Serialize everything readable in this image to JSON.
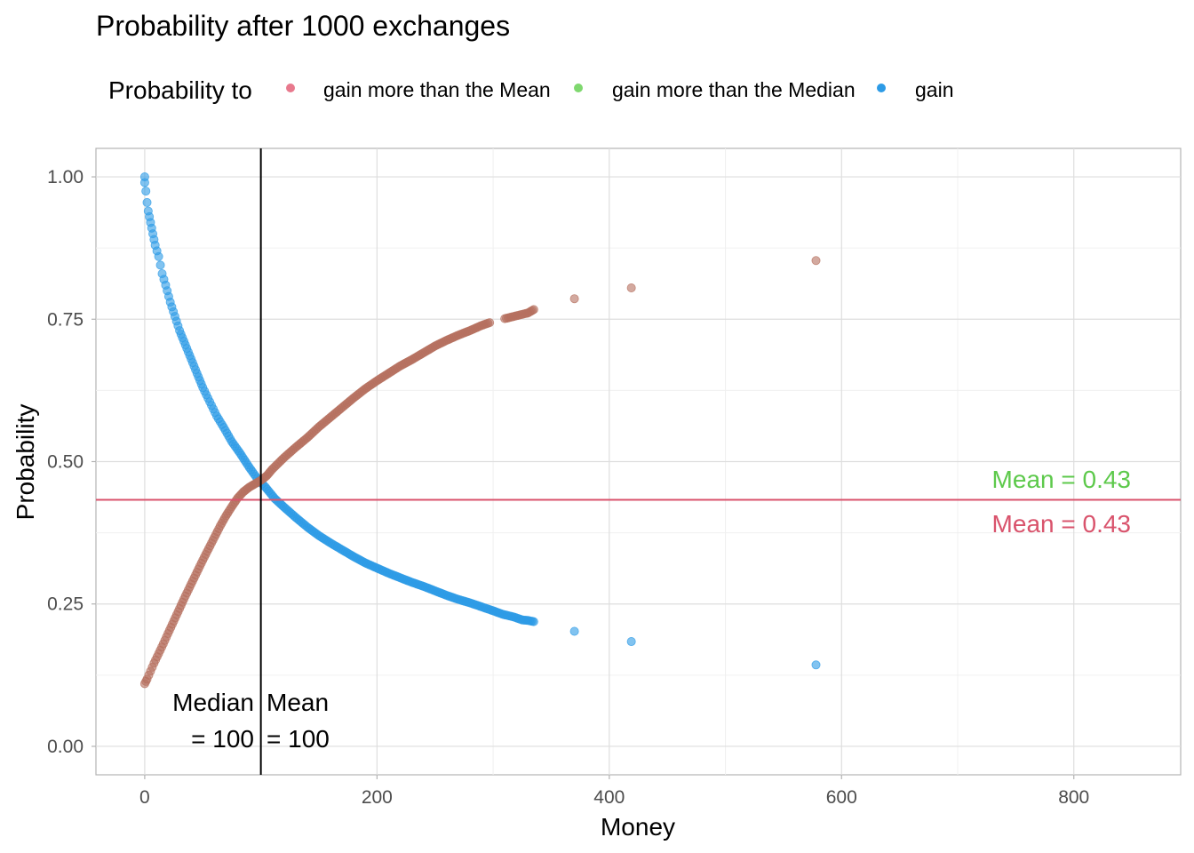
{
  "chart_data": {
    "type": "scatter",
    "title": "Probability after 1000 exchanges",
    "xlabel": "Money",
    "ylabel": "Probability",
    "xlim": [
      -42,
      892
    ],
    "ylim": [
      -0.05,
      1.05
    ],
    "x_ticks": [
      0,
      200,
      400,
      600,
      800
    ],
    "y_ticks": [
      0.0,
      0.25,
      0.5,
      0.75,
      1.0
    ],
    "x_tick_labels": [
      "0",
      "200",
      "400",
      "600",
      "800"
    ],
    "y_tick_labels": [
      "0.00",
      "0.25",
      "0.50",
      "0.75",
      "1.00"
    ],
    "grid": true,
    "legend": {
      "title": "Probability to",
      "position": "top",
      "entries": [
        {
          "label": "gain more than the Mean",
          "color": "#E8798D"
        },
        {
          "label": "gain more than the Median",
          "color": "#7FD86F"
        },
        {
          "label": "gain",
          "color": "#2D9BE6"
        }
      ]
    },
    "series": [
      {
        "name": "gain",
        "color": "#2D9BE6",
        "points": [
          [
            0,
            1.0
          ],
          [
            0,
            0.99
          ],
          [
            1,
            0.975
          ],
          [
            2,
            0.955
          ],
          [
            3,
            0.94
          ],
          [
            5,
            0.92
          ],
          [
            7,
            0.9
          ],
          [
            9,
            0.88
          ],
          [
            12,
            0.86
          ],
          [
            15,
            0.83
          ],
          [
            18,
            0.81
          ],
          [
            22,
            0.78
          ],
          [
            26,
            0.755
          ],
          [
            30,
            0.73
          ],
          [
            35,
            0.705
          ],
          [
            40,
            0.68
          ],
          [
            45,
            0.655
          ],
          [
            50,
            0.63
          ],
          [
            56,
            0.605
          ],
          [
            62,
            0.58
          ],
          [
            68,
            0.56
          ],
          [
            75,
            0.535
          ],
          [
            82,
            0.515
          ],
          [
            90,
            0.49
          ],
          [
            97,
            0.47
          ],
          [
            104,
            0.455
          ],
          [
            112,
            0.435
          ],
          [
            120,
            0.42
          ],
          [
            130,
            0.402
          ],
          [
            140,
            0.385
          ],
          [
            150,
            0.37
          ],
          [
            160,
            0.357
          ],
          [
            170,
            0.345
          ],
          [
            180,
            0.333
          ],
          [
            190,
            0.322
          ],
          [
            200,
            0.313
          ],
          [
            210,
            0.304
          ],
          [
            220,
            0.296
          ],
          [
            230,
            0.288
          ],
          [
            240,
            0.281
          ],
          [
            250,
            0.273
          ],
          [
            260,
            0.265
          ],
          [
            270,
            0.258
          ],
          [
            280,
            0.252
          ],
          [
            290,
            0.245
          ],
          [
            300,
            0.238
          ],
          [
            308,
            0.232
          ],
          [
            318,
            0.227
          ],
          [
            325,
            0.222
          ],
          [
            330,
            0.221
          ],
          [
            335,
            0.219
          ],
          [
            370,
            0.202
          ],
          [
            419,
            0.184
          ],
          [
            578,
            0.143
          ]
        ]
      },
      {
        "name": "gain more than the Mean",
        "color": "#B5705F",
        "points": [
          [
            0,
            0.11
          ],
          [
            2,
            0.118
          ],
          [
            5,
            0.132
          ],
          [
            8,
            0.146
          ],
          [
            12,
            0.163
          ],
          [
            16,
            0.18
          ],
          [
            20,
            0.198
          ],
          [
            25,
            0.22
          ],
          [
            30,
            0.242
          ],
          [
            35,
            0.264
          ],
          [
            40,
            0.285
          ],
          [
            45,
            0.306
          ],
          [
            50,
            0.327
          ],
          [
            55,
            0.347
          ],
          [
            60,
            0.367
          ],
          [
            65,
            0.387
          ],
          [
            70,
            0.405
          ],
          [
            75,
            0.421
          ],
          [
            80,
            0.436
          ],
          [
            85,
            0.447
          ],
          [
            90,
            0.455
          ],
          [
            95,
            0.461
          ],
          [
            100,
            0.467
          ],
          [
            105,
            0.475
          ],
          [
            110,
            0.487
          ],
          [
            120,
            0.507
          ],
          [
            130,
            0.525
          ],
          [
            140,
            0.542
          ],
          [
            150,
            0.561
          ],
          [
            160,
            0.578
          ],
          [
            170,
            0.595
          ],
          [
            180,
            0.612
          ],
          [
            190,
            0.628
          ],
          [
            200,
            0.642
          ],
          [
            210,
            0.655
          ],
          [
            220,
            0.668
          ],
          [
            230,
            0.679
          ],
          [
            240,
            0.691
          ],
          [
            250,
            0.703
          ],
          [
            260,
            0.713
          ],
          [
            270,
            0.722
          ],
          [
            280,
            0.73
          ],
          [
            290,
            0.739
          ],
          [
            297,
            0.744
          ],
          [
            310,
            0.751
          ],
          [
            320,
            0.756
          ],
          [
            330,
            0.761
          ],
          [
            335,
            0.767
          ],
          [
            370,
            0.786
          ],
          [
            419,
            0.805
          ],
          [
            578,
            0.853
          ]
        ]
      }
    ],
    "reference_lines": [
      {
        "orientation": "horizontal",
        "value": 0.433,
        "color": "#D9536C"
      },
      {
        "orientation": "vertical",
        "value": 100,
        "color": "#000000"
      }
    ],
    "annotations": [
      {
        "text_lines": [
          "Median",
          "= 100"
        ],
        "color": "#000000"
      },
      {
        "text_lines": [
          "Mean",
          "= 100"
        ],
        "color": "#000000"
      },
      {
        "text": "Mean = 0.43",
        "color": "#5DC94B"
      },
      {
        "text": "Mean = 0.43",
        "color": "#D9536C"
      }
    ]
  }
}
